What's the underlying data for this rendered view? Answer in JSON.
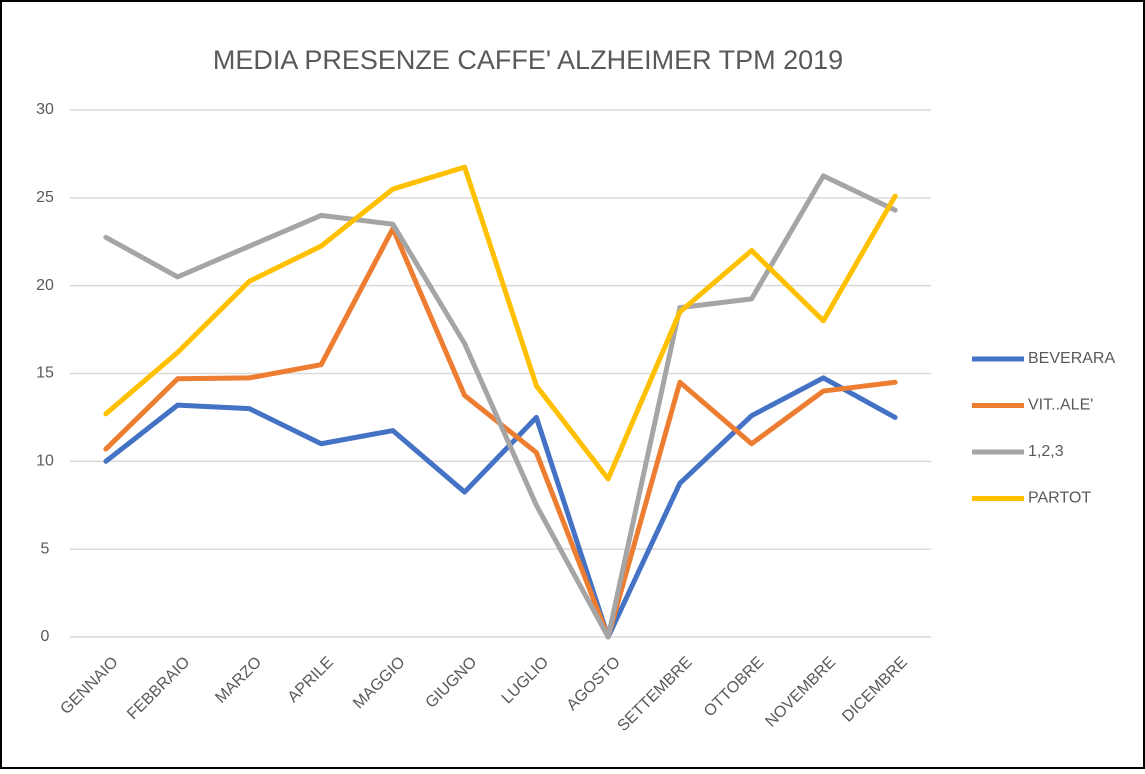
{
  "chart_data": {
    "type": "line",
    "title": "MEDIA PRESENZE CAFFE'  ALZHEIMER TPM 2019",
    "categories": [
      "GENNAIO",
      "FEBBRAIO",
      "MARZO",
      "APRILE",
      "MAGGIO",
      "GIUGNO",
      "LUGLIO",
      "AGOSTO",
      "SETTEMBRE",
      "OTTOBRE",
      "NOVEMBRE",
      "DICEMBRE"
    ],
    "series": [
      {
        "name": "BEVERARA",
        "color": "#4472c4",
        "values": [
          10,
          13.2,
          13,
          11,
          11.75,
          8.25,
          12.5,
          0,
          8.75,
          12.6,
          14.75,
          12.5
        ]
      },
      {
        "name": "VIT..ALE'",
        "color": "#ed7d31",
        "values": [
          10.7,
          14.7,
          14.75,
          15.5,
          23.25,
          13.75,
          10.5,
          0,
          14.5,
          11,
          14,
          14.5
        ]
      },
      {
        "name": "1,2,3",
        "color": "#a5a5a5",
        "values": [
          22.75,
          20.5,
          22.25,
          24,
          23.5,
          16.7,
          7.5,
          0,
          18.75,
          19.25,
          26.25,
          24.3
        ]
      },
      {
        "name": "PARTOT",
        "color": "#ffc000",
        "values": [
          12.7,
          16.2,
          20.25,
          22.25,
          25.5,
          26.75,
          14.3,
          9,
          18.5,
          22,
          18,
          25.1
        ]
      }
    ],
    "ylim": [
      0,
      30
    ],
    "yticks": [
      0,
      5,
      10,
      15,
      20,
      25,
      30
    ],
    "grid": true,
    "legend": "right"
  }
}
